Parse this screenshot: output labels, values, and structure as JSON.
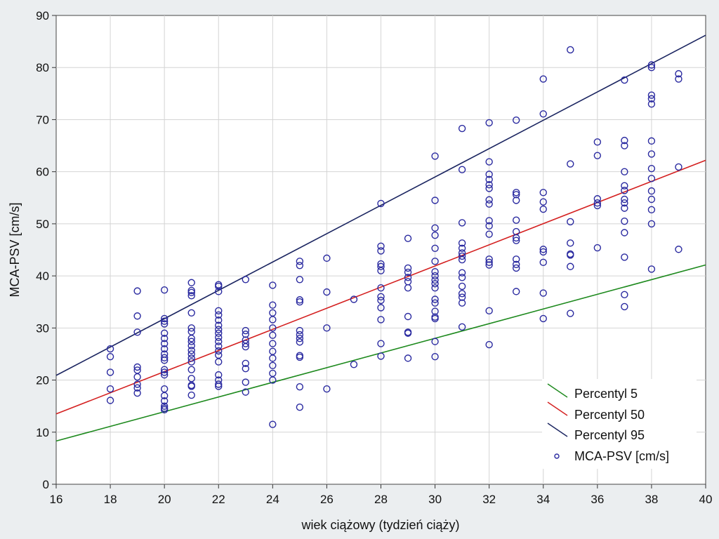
{
  "chart_data": {
    "type": "scatter",
    "title": "",
    "xlabel": "wiek ciążowy (tydzień ciąży)",
    "ylabel": "MCA-PSV [cm/s]",
    "xlim": [
      16,
      40
    ],
    "ylim": [
      0,
      90
    ],
    "xticks": [
      16,
      18,
      20,
      22,
      24,
      26,
      28,
      30,
      32,
      34,
      36,
      38,
      40
    ],
    "yticks": [
      0,
      10,
      20,
      30,
      40,
      50,
      60,
      70,
      80,
      90
    ],
    "grid": true,
    "legend_position": "bottom-right",
    "lines": [
      {
        "name": "Percentyl 5",
        "color": "#1e8a1e",
        "x": [
          16,
          40
        ],
        "y": [
          8.3,
          42.1
        ]
      },
      {
        "name": "Percentyl 50",
        "color": "#d42020",
        "x": [
          16,
          40
        ],
        "y": [
          13.5,
          62.2
        ]
      },
      {
        "name": "Percentyl 95",
        "color": "#1a2460",
        "x": [
          16,
          40
        ],
        "y": [
          20.9,
          86.2
        ]
      }
    ],
    "scatter": {
      "name": "MCA-PSV [cm/s]",
      "color": "#2a2aa0",
      "points": [
        [
          18,
          26
        ],
        [
          18,
          24.5
        ],
        [
          18,
          21.5
        ],
        [
          18,
          18.3
        ],
        [
          18,
          16.1
        ],
        [
          19,
          37.1
        ],
        [
          19,
          32.3
        ],
        [
          19,
          29.2
        ],
        [
          19,
          22.5
        ],
        [
          19,
          21.9
        ],
        [
          19,
          20.6
        ],
        [
          19,
          19.2
        ],
        [
          19,
          18.5
        ],
        [
          19,
          17.5
        ],
        [
          20,
          37.3
        ],
        [
          20,
          31.8
        ],
        [
          20,
          31.3
        ],
        [
          20,
          30.8
        ],
        [
          20,
          29
        ],
        [
          20,
          28
        ],
        [
          20,
          27
        ],
        [
          20,
          26
        ],
        [
          20,
          25
        ],
        [
          20,
          24.3
        ],
        [
          20,
          23.8
        ],
        [
          20,
          22
        ],
        [
          20,
          21.5
        ],
        [
          20,
          21
        ],
        [
          20,
          18.3
        ],
        [
          20,
          17
        ],
        [
          20,
          16
        ],
        [
          20,
          15
        ],
        [
          20,
          14.6
        ],
        [
          20,
          14.3
        ],
        [
          21,
          38.7
        ],
        [
          21,
          37.2
        ],
        [
          21,
          36.8
        ],
        [
          21,
          36.2
        ],
        [
          21,
          32.9
        ],
        [
          21,
          30
        ],
        [
          21,
          29.3
        ],
        [
          21,
          28
        ],
        [
          21,
          27.4
        ],
        [
          21,
          26.6
        ],
        [
          21,
          25.7
        ],
        [
          21,
          25
        ],
        [
          21,
          24.2
        ],
        [
          21,
          23.5
        ],
        [
          21,
          22
        ],
        [
          21,
          20.3
        ],
        [
          21,
          19
        ],
        [
          21,
          18.8
        ],
        [
          21,
          17.1
        ],
        [
          22,
          38.3
        ],
        [
          22,
          38
        ],
        [
          22,
          37
        ],
        [
          22,
          33.3
        ],
        [
          22,
          32.5
        ],
        [
          22,
          31.5
        ],
        [
          22,
          30.5
        ],
        [
          22,
          29.7
        ],
        [
          22,
          29
        ],
        [
          22,
          28.2
        ],
        [
          22,
          27.4
        ],
        [
          22,
          26.5
        ],
        [
          22,
          25.6
        ],
        [
          22,
          24.8
        ],
        [
          22,
          23.5
        ],
        [
          22,
          21
        ],
        [
          22,
          20
        ],
        [
          22,
          19.2
        ],
        [
          22,
          18.8
        ],
        [
          23,
          39.3
        ],
        [
          23,
          29.5
        ],
        [
          23,
          28.8
        ],
        [
          23,
          27.7
        ],
        [
          23,
          27
        ],
        [
          23,
          26.4
        ],
        [
          23,
          23.2
        ],
        [
          23,
          22.2
        ],
        [
          23,
          19.6
        ],
        [
          23,
          17.7
        ],
        [
          24,
          38.2
        ],
        [
          24,
          34.4
        ],
        [
          24,
          32.9
        ],
        [
          24,
          31.6
        ],
        [
          24,
          30
        ],
        [
          24,
          28.6
        ],
        [
          24,
          27
        ],
        [
          24,
          25.5
        ],
        [
          24,
          24.2
        ],
        [
          24,
          22.8
        ],
        [
          24,
          21.3
        ],
        [
          24,
          20
        ],
        [
          24,
          11.5
        ],
        [
          25,
          42.8
        ],
        [
          25,
          42
        ],
        [
          25,
          39.3
        ],
        [
          25,
          35.4
        ],
        [
          25,
          35
        ],
        [
          25,
          29.5
        ],
        [
          25,
          28.7
        ],
        [
          25,
          28
        ],
        [
          25,
          27.3
        ],
        [
          25,
          24.7
        ],
        [
          25,
          24.4
        ],
        [
          25,
          18.7
        ],
        [
          25,
          14.8
        ],
        [
          26,
          43.4
        ],
        [
          26,
          36.9
        ],
        [
          26,
          30
        ],
        [
          26,
          18.3
        ],
        [
          27,
          35.5
        ],
        [
          27,
          23
        ],
        [
          28,
          53.9
        ],
        [
          28,
          45.7
        ],
        [
          28,
          44.8
        ],
        [
          28,
          42.3
        ],
        [
          28,
          41.8
        ],
        [
          28,
          41
        ],
        [
          28,
          37.7
        ],
        [
          28,
          36
        ],
        [
          28,
          35.3
        ],
        [
          28,
          33.9
        ],
        [
          28,
          31.6
        ],
        [
          28,
          27
        ],
        [
          28,
          24.6
        ],
        [
          29,
          47.2
        ],
        [
          29,
          41.5
        ],
        [
          29,
          40.7
        ],
        [
          29,
          39.7
        ],
        [
          29,
          38.9
        ],
        [
          29,
          37.7
        ],
        [
          29,
          32.2
        ],
        [
          29,
          29.2
        ],
        [
          29,
          29
        ],
        [
          29,
          24.2
        ],
        [
          30,
          63
        ],
        [
          30,
          54.5
        ],
        [
          30,
          49.2
        ],
        [
          30,
          47.8
        ],
        [
          30,
          45.3
        ],
        [
          30,
          42.8
        ],
        [
          30,
          40.8
        ],
        [
          30,
          40
        ],
        [
          30,
          39.2
        ],
        [
          30,
          38.5
        ],
        [
          30,
          37.7
        ],
        [
          30,
          35.5
        ],
        [
          30,
          34.8
        ],
        [
          30,
          33.2
        ],
        [
          30,
          32.1
        ],
        [
          30,
          31.8
        ],
        [
          30,
          27.4
        ],
        [
          30,
          24.5
        ],
        [
          31,
          68.3
        ],
        [
          31,
          60.4
        ],
        [
          31,
          50.2
        ],
        [
          31,
          46.3
        ],
        [
          31,
          45.3
        ],
        [
          31,
          44.4
        ],
        [
          31,
          43.8
        ],
        [
          31,
          43.1
        ],
        [
          31,
          40.6
        ],
        [
          31,
          39.7
        ],
        [
          31,
          38
        ],
        [
          31,
          36.6
        ],
        [
          31,
          35.9
        ],
        [
          31,
          34.8
        ],
        [
          31,
          30.2
        ],
        [
          32,
          69.4
        ],
        [
          32,
          61.9
        ],
        [
          32,
          59.5
        ],
        [
          32,
          58.5
        ],
        [
          32,
          57.5
        ],
        [
          32,
          56.8
        ],
        [
          32,
          54.6
        ],
        [
          32,
          53.8
        ],
        [
          32,
          50.6
        ],
        [
          32,
          49.6
        ],
        [
          32,
          48
        ],
        [
          32,
          43.2
        ],
        [
          32,
          42.6
        ],
        [
          32,
          42.1
        ],
        [
          32,
          33.3
        ],
        [
          32,
          26.8
        ],
        [
          33,
          69.9
        ],
        [
          33,
          56
        ],
        [
          33,
          55.6
        ],
        [
          33,
          54.5
        ],
        [
          33,
          50.7
        ],
        [
          33,
          48.5
        ],
        [
          33,
          47.3
        ],
        [
          33,
          46.8
        ],
        [
          33,
          43.2
        ],
        [
          33,
          42.2
        ],
        [
          33,
          41.5
        ],
        [
          33,
          37
        ],
        [
          34,
          77.8
        ],
        [
          34,
          71.1
        ],
        [
          34,
          56
        ],
        [
          34,
          54.2
        ],
        [
          34,
          52.8
        ],
        [
          34,
          45.1
        ],
        [
          34,
          44.6
        ],
        [
          34,
          42.6
        ],
        [
          34,
          36.7
        ],
        [
          34,
          31.8
        ],
        [
          35,
          83.4
        ],
        [
          35,
          61.5
        ],
        [
          35,
          50.4
        ],
        [
          35,
          46.3
        ],
        [
          35,
          44.2
        ],
        [
          35,
          44
        ],
        [
          35,
          41.8
        ],
        [
          35,
          32.8
        ],
        [
          36,
          65.7
        ],
        [
          36,
          63.1
        ],
        [
          36,
          54.8
        ],
        [
          36,
          54
        ],
        [
          36,
          53.5
        ],
        [
          36,
          45.4
        ],
        [
          37,
          77.6
        ],
        [
          37,
          66
        ],
        [
          37,
          65
        ],
        [
          37,
          60
        ],
        [
          37,
          57.3
        ],
        [
          37,
          56.4
        ],
        [
          37,
          54.7
        ],
        [
          37,
          54
        ],
        [
          37,
          53
        ],
        [
          37,
          50.5
        ],
        [
          37,
          48.3
        ],
        [
          37,
          43.6
        ],
        [
          37,
          36.4
        ],
        [
          37,
          34.1
        ],
        [
          38,
          80.5
        ],
        [
          38,
          80
        ],
        [
          38,
          74.7
        ],
        [
          38,
          74
        ],
        [
          38,
          73
        ],
        [
          38,
          65.9
        ],
        [
          38,
          63.4
        ],
        [
          38,
          60.6
        ],
        [
          38,
          58.7
        ],
        [
          38,
          56.3
        ],
        [
          38,
          54.7
        ],
        [
          38,
          52.7
        ],
        [
          38,
          50
        ],
        [
          38,
          41.3
        ],
        [
          39,
          78.8
        ],
        [
          39,
          77.8
        ],
        [
          39,
          60.9
        ],
        [
          39,
          45.1
        ]
      ]
    }
  }
}
